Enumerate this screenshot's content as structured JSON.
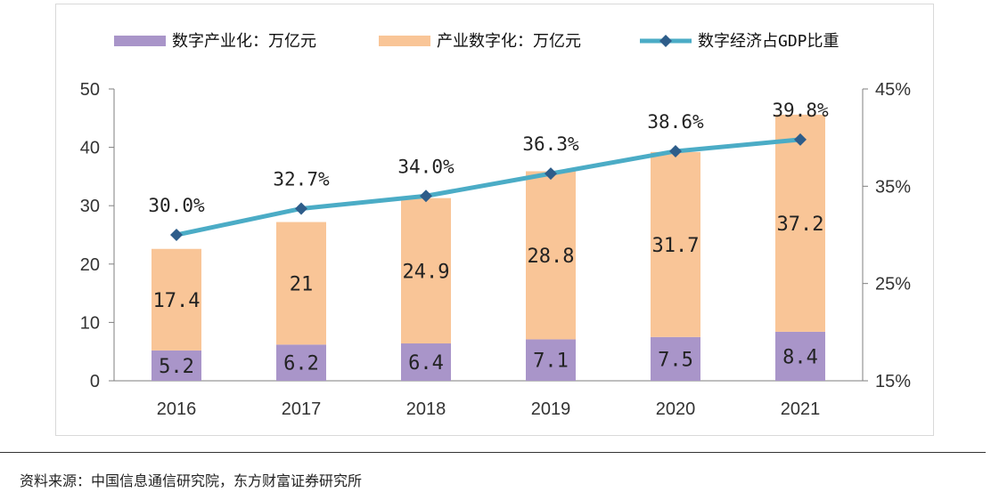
{
  "chart_data": {
    "type": "bar",
    "stacked": true,
    "categories": [
      "2016",
      "2017",
      "2018",
      "2019",
      "2020",
      "2021"
    ],
    "series": [
      {
        "name": "数字产业化：万亿元",
        "type": "bar",
        "axis": "left",
        "color": "#a995c9",
        "values": [
          5.2,
          6.2,
          6.4,
          7.1,
          7.5,
          8.4
        ],
        "labels": [
          "5.2",
          "6.2",
          "6.4",
          "7.1",
          "7.5",
          "8.4"
        ]
      },
      {
        "name": "产业数字化：万亿元",
        "type": "bar",
        "axis": "left",
        "color": "#f9c597",
        "values": [
          17.4,
          21,
          24.9,
          28.8,
          31.7,
          37.2
        ],
        "labels": [
          "17.4",
          "21",
          "24.9",
          "28.8",
          "31.7",
          "37.2"
        ]
      },
      {
        "name": "数字经济占GDP比重",
        "type": "line",
        "axis": "right",
        "color": "#4bacc6",
        "marker_color": "#2e5d8a",
        "values": [
          30.0,
          32.7,
          34.0,
          36.3,
          38.6,
          39.8
        ],
        "labels": [
          "30.0%",
          "32.7%",
          "34.0%",
          "36.3%",
          "38.6%",
          "39.8%"
        ]
      }
    ],
    "y_left": {
      "ylim": [
        0,
        50
      ],
      "ticks": [
        "0",
        "10",
        "20",
        "30",
        "40",
        "50"
      ]
    },
    "y_right": {
      "ylim": [
        15,
        45
      ],
      "ticks": [
        "15%",
        "25%",
        "35%",
        "45%"
      ]
    },
    "legend": "top",
    "grid": false
  },
  "source_note": "资料来源：中国信息通信研究院，东方财富证券研究所"
}
